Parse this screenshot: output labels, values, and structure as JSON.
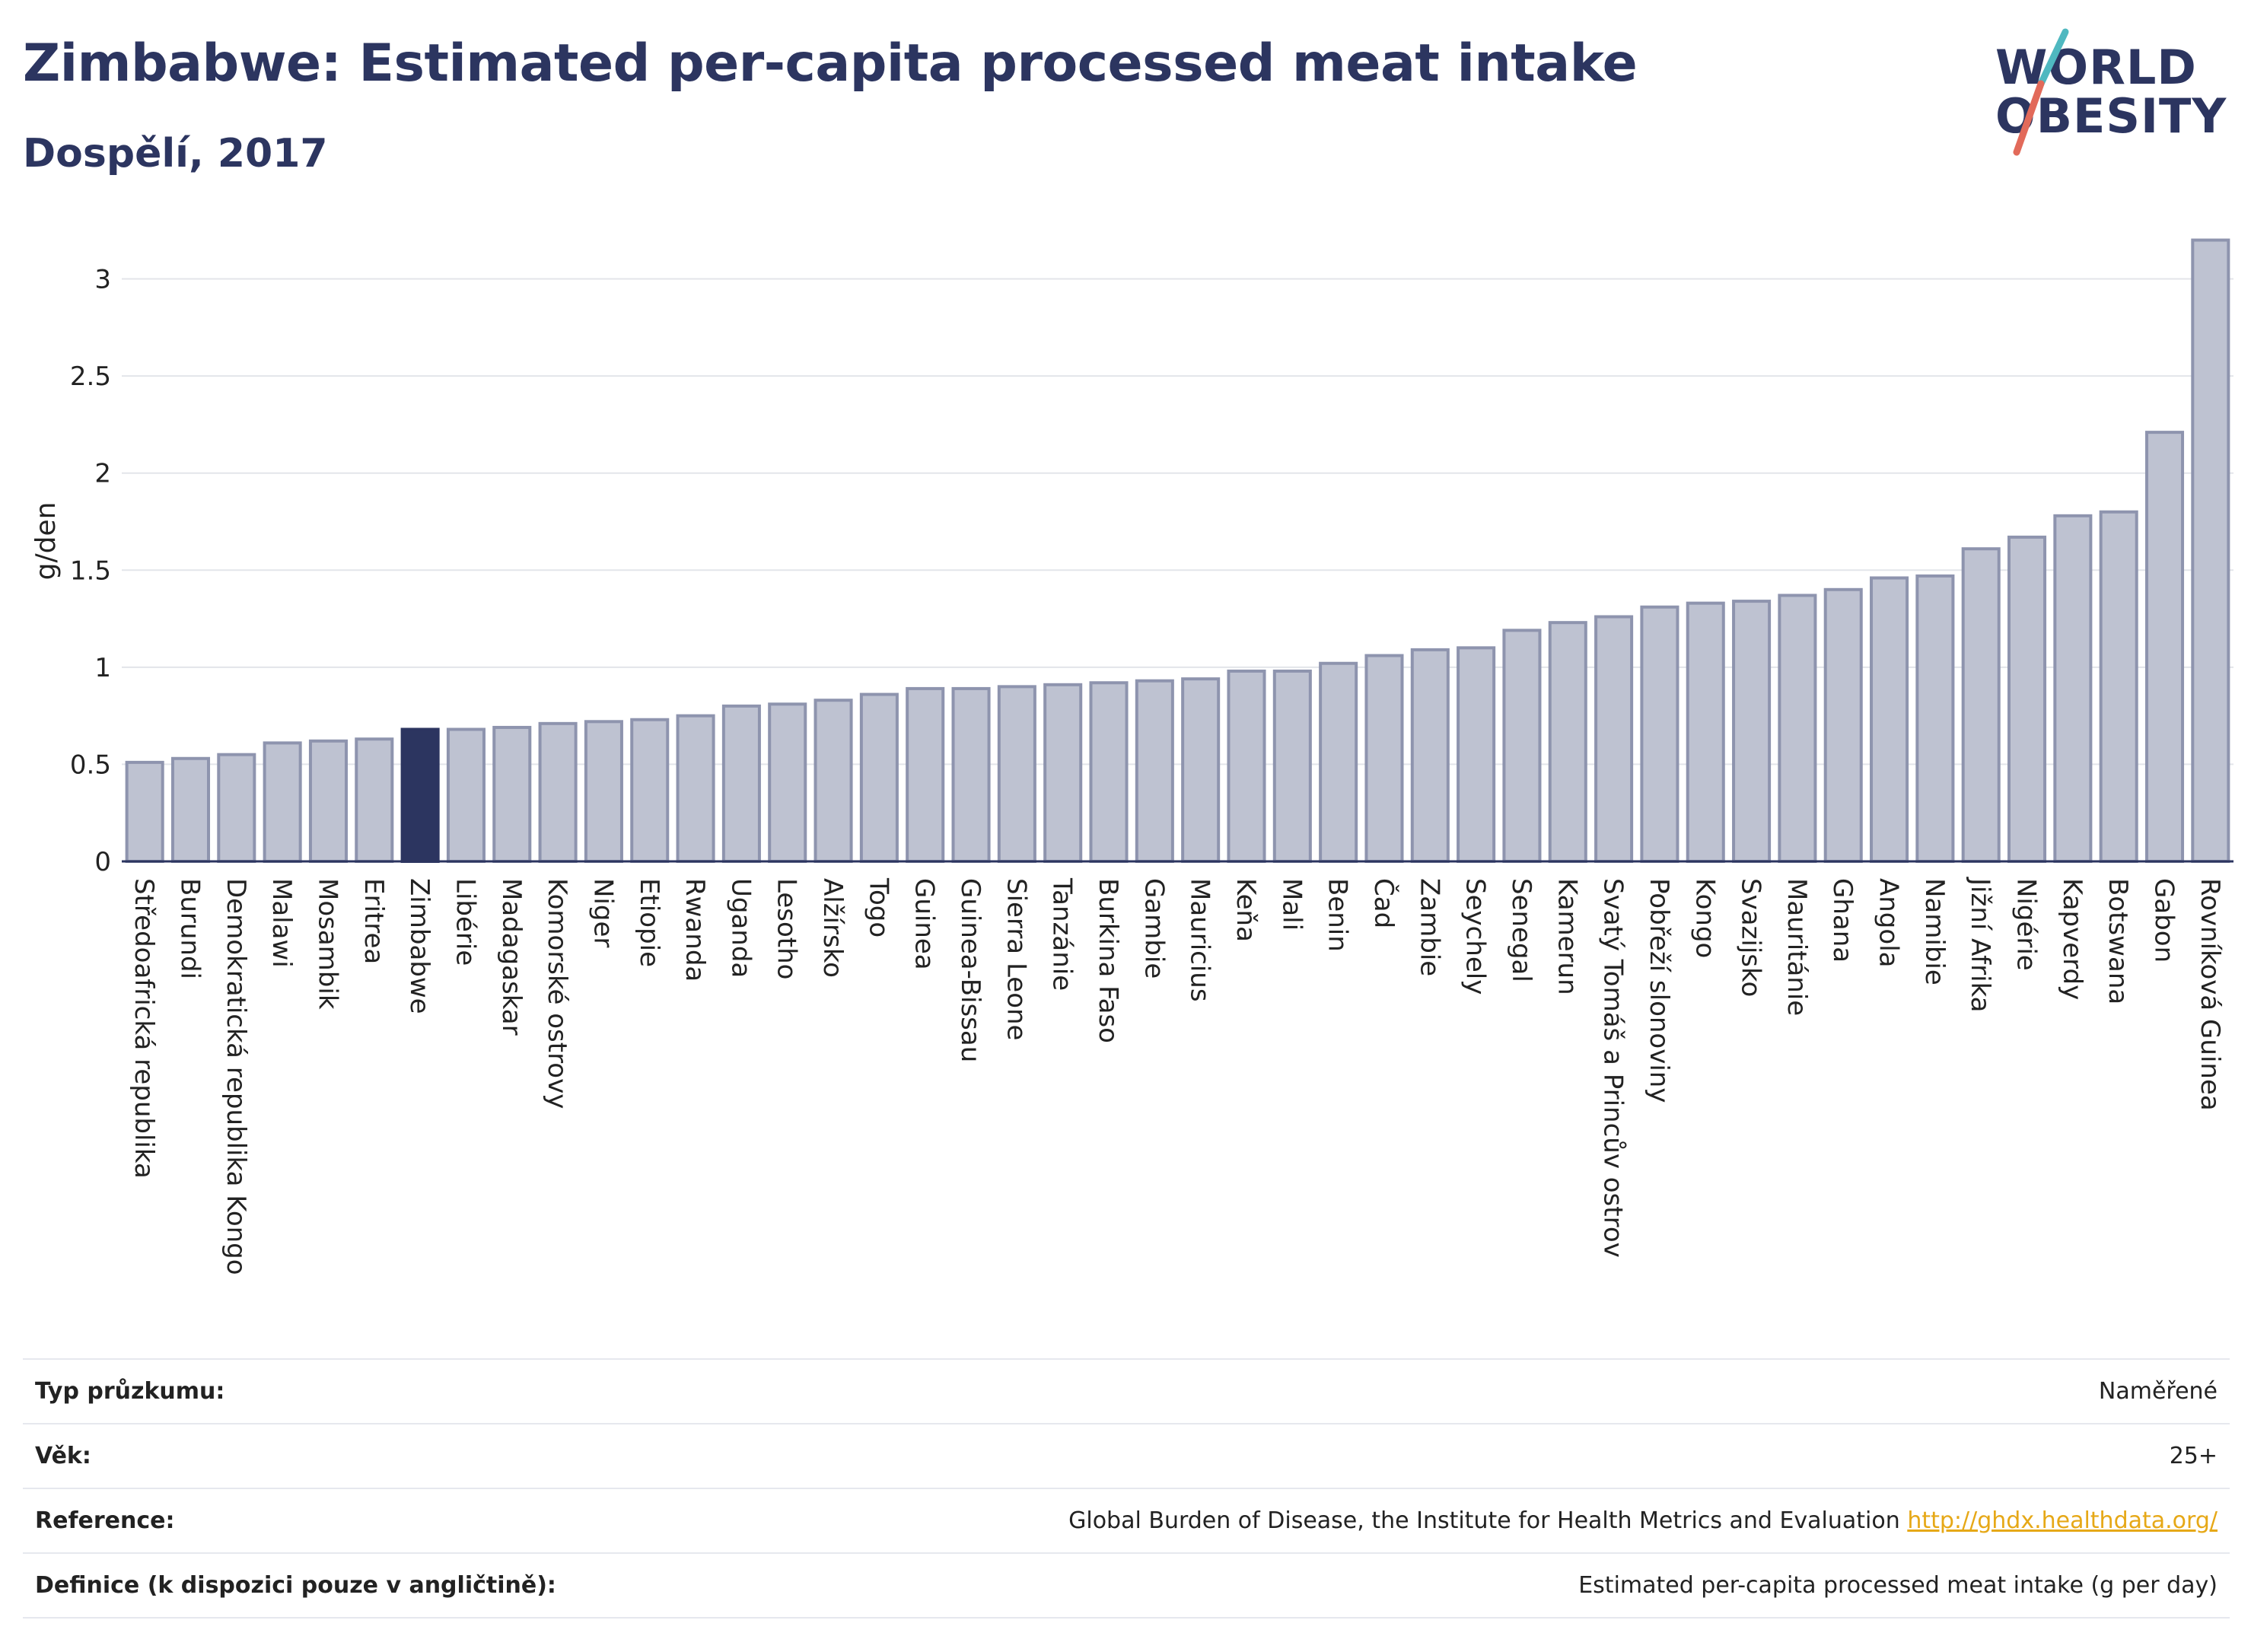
{
  "title": "Zimbabwe: Estimated per-capita processed meat intake",
  "subtitle": "Dospělí, 2017",
  "logo": {
    "line1": "WORLD",
    "line2": "OBESITY"
  },
  "colors": {
    "bar": "#bec2d1",
    "bar_border": "#8e94ae",
    "highlight": "#2c3560",
    "title": "#2c3560",
    "link": "#e6a817"
  },
  "chart_data": {
    "type": "bar",
    "ylabel": "g/den",
    "ylim": [
      0,
      3.3
    ],
    "yticks": [
      0,
      0.5,
      1,
      1.5,
      2,
      2.5,
      3
    ],
    "grid": true,
    "highlight": "Zimbabwe",
    "categories": [
      "Středoafrická republika",
      "Burundi",
      "Demokratická republika Kongo",
      "Malawi",
      "Mosambik",
      "Eritrea",
      "Zimbabwe",
      "Libérie",
      "Madagaskar",
      "Komorské ostrovy",
      "Niger",
      "Etiopie",
      "Rwanda",
      "Uganda",
      "Lesotho",
      "Alžírsko",
      "Togo",
      "Guinea",
      "Guinea-Bissau",
      "Sierra Leone",
      "Tanzánie",
      "Burkina Faso",
      "Gambie",
      "Mauricius",
      "Keňa",
      "Mali",
      "Benin",
      "Čad",
      "Zambie",
      "Seychely",
      "Senegal",
      "Kamerun",
      "Svatý Tomáš a Princův ostrov",
      "Pobřeží slonoviny",
      "Kongo",
      "Svazijsko",
      "Mauritánie",
      "Ghana",
      "Angola",
      "Namibie",
      "Jižní Afrika",
      "Nigérie",
      "Kapverdy",
      "Botswana",
      "Gabon",
      "Rovníková Guinea"
    ],
    "values": [
      0.51,
      0.53,
      0.55,
      0.61,
      0.62,
      0.63,
      0.68,
      0.68,
      0.69,
      0.71,
      0.72,
      0.73,
      0.75,
      0.8,
      0.81,
      0.83,
      0.86,
      0.89,
      0.89,
      0.9,
      0.91,
      0.92,
      0.93,
      0.94,
      0.98,
      0.98,
      1.02,
      1.06,
      1.09,
      1.1,
      1.19,
      1.23,
      1.26,
      1.31,
      1.33,
      1.34,
      1.37,
      1.4,
      1.46,
      1.47,
      1.61,
      1.67,
      1.78,
      1.8,
      2.21,
      3.2
    ]
  },
  "meta": [
    {
      "key": "Typ průzkumu:",
      "value": "Naměřené"
    },
    {
      "key": "Věk:",
      "value": "25+"
    },
    {
      "key": "Reference:",
      "value": "Global Burden of Disease, the Institute for Health Metrics and Evaluation",
      "link": "http://ghdx.healthdata.org/"
    },
    {
      "key": "Definice (k dispozici pouze v angličtině):",
      "value": "Estimated per-capita processed meat intake (g per day)"
    }
  ]
}
